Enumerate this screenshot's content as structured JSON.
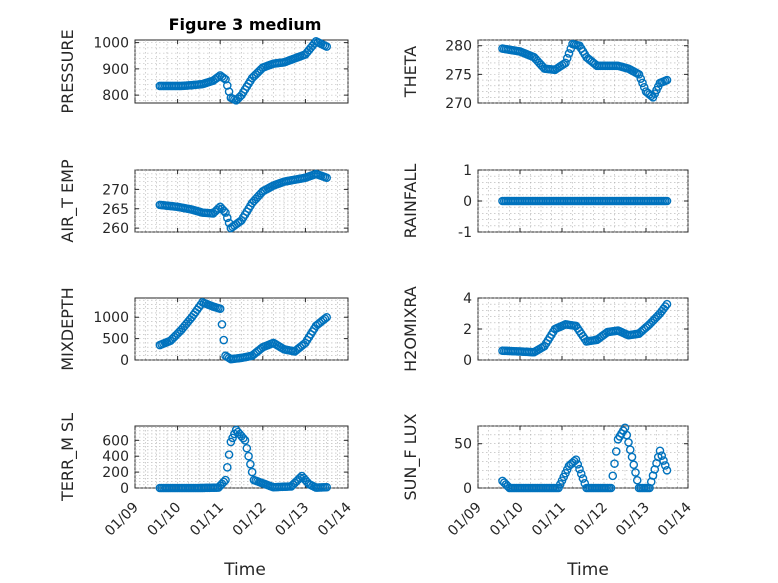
{
  "figure": {
    "title": "Figure 3 medium",
    "marker_color": "#0072BD"
  },
  "chart_data": [
    {
      "type": "scatter",
      "ylabel": "PRESSURE",
      "ylim": [
        770,
        1010
      ],
      "yticks": [
        800,
        900,
        1000
      ],
      "ytick_labels": [
        "800",
        "900",
        "1000"
      ],
      "x": [
        "01/09 14:00",
        "01/09 20:00",
        "01/10 02:00",
        "01/10 08:00",
        "01/10 14:00",
        "01/10 20:00",
        "01/11 00:00",
        "01/11 03:00",
        "01/11 06:00",
        "01/11 09:00",
        "01/11 12:00",
        "01/11 18:00",
        "01/12 00:00",
        "01/12 06:00",
        "01/12 12:00",
        "01/12 18:00",
        "01/13 00:00",
        "01/13 06:00",
        "01/13 12:00"
      ],
      "y": [
        835,
        835,
        835,
        838,
        842,
        855,
        875,
        860,
        790,
        780,
        800,
        865,
        905,
        920,
        925,
        940,
        955,
        1005,
        985
      ]
    },
    {
      "type": "scatter",
      "ylabel": "THETA",
      "ylim": [
        270,
        281
      ],
      "yticks": [
        270,
        275,
        280
      ],
      "ytick_labels": [
        "270",
        "275",
        "280"
      ],
      "x": [
        "01/09 14:00",
        "01/10 00:00",
        "01/10 08:00",
        "01/10 14:00",
        "01/10 20:00",
        "01/11 02:00",
        "01/11 06:00",
        "01/11 10:00",
        "01/11 14:00",
        "01/11 20:00",
        "01/12 02:00",
        "01/12 08:00",
        "01/12 14:00",
        "01/12 20:00",
        "01/13 00:00",
        "01/13 04:00",
        "01/13 08:00",
        "01/13 12:00"
      ],
      "y": [
        279.5,
        279,
        278,
        276,
        275.8,
        277,
        280.3,
        280,
        278,
        276.5,
        276.5,
        276.5,
        276,
        275,
        272,
        271,
        273.5,
        274
      ]
    },
    {
      "type": "scatter",
      "ylabel": "AIR_T EMP",
      "ylim": [
        259,
        275
      ],
      "yticks": [
        260,
        265,
        270
      ],
      "ytick_labels": [
        "260",
        "265",
        "270"
      ],
      "x": [
        "01/09 14:00",
        "01/10 00:00",
        "01/10 08:00",
        "01/10 14:00",
        "01/10 20:00",
        "01/11 00:00",
        "01/11 03:00",
        "01/11 06:00",
        "01/11 12:00",
        "01/11 18:00",
        "01/12 00:00",
        "01/12 06:00",
        "01/12 12:00",
        "01/12 18:00",
        "01/13 00:00",
        "01/13 06:00",
        "01/13 12:00"
      ],
      "y": [
        266,
        265.5,
        264.8,
        264,
        263.8,
        265.5,
        264,
        260,
        262,
        266.5,
        269.5,
        271,
        272,
        272.5,
        273,
        274,
        273
      ]
    },
    {
      "type": "scatter",
      "ylabel": "RAINFALL",
      "ylim": [
        -1,
        1
      ],
      "yticks": [
        -1,
        0,
        1
      ],
      "ytick_labels": [
        "-1",
        "0",
        "1"
      ],
      "x": [
        "01/09 14:00",
        "01/13 12:00"
      ],
      "y": [
        0,
        0
      ]
    },
    {
      "type": "scatter",
      "ylabel": "MIXDEPTH",
      "ylim": [
        0,
        1450
      ],
      "yticks": [
        0,
        500,
        1000
      ],
      "ytick_labels": [
        "0",
        "500",
        "1000"
      ],
      "x": [
        "01/09 14:00",
        "01/09 20:00",
        "01/10 02:00",
        "01/10 08:00",
        "01/10 14:00",
        "01/10 20:00",
        "01/11 00:00",
        "01/11 03:00",
        "01/11 06:00",
        "01/11 12:00",
        "01/11 18:00",
        "01/12 00:00",
        "01/12 06:00",
        "01/12 12:00",
        "01/12 18:00",
        "01/13 00:00",
        "01/13 06:00",
        "01/13 12:00"
      ],
      "y": [
        350,
        450,
        700,
        1000,
        1350,
        1250,
        1200,
        100,
        20,
        50,
        100,
        300,
        400,
        250,
        200,
        400,
        800,
        1000
      ]
    },
    {
      "type": "scatter",
      "ylabel": "H2OMIXRA",
      "ylim": [
        0,
        4
      ],
      "yticks": [
        0,
        2,
        4
      ],
      "ytick_labels": [
        "0",
        "2",
        "4"
      ],
      "x": [
        "01/09 14:00",
        "01/10 00:00",
        "01/10 08:00",
        "01/10 14:00",
        "01/10 20:00",
        "01/11 02:00",
        "01/11 08:00",
        "01/11 14:00",
        "01/11 20:00",
        "01/12 02:00",
        "01/12 08:00",
        "01/12 14:00",
        "01/12 20:00",
        "01/13 02:00",
        "01/13 08:00",
        "01/13 12:00"
      ],
      "y": [
        0.6,
        0.55,
        0.5,
        0.9,
        2,
        2.3,
        2.2,
        1.2,
        1.3,
        1.8,
        1.9,
        1.6,
        1.7,
        2.3,
        3,
        3.6
      ]
    },
    {
      "type": "scatter",
      "ylabel": "TERR_M SL",
      "ylim": [
        0,
        780
      ],
      "yticks": [
        0,
        200,
        400,
        600
      ],
      "ytick_labels": [
        "0",
        "200",
        "400",
        "600"
      ],
      "x": [
        "01/09 14:00",
        "01/10 12:00",
        "01/10 23:00",
        "01/11 03:00",
        "01/11 06:00",
        "01/11 09:00",
        "01/11 14:00",
        "01/11 19:00",
        "01/12 06:00",
        "01/12 16:00",
        "01/12 22:00",
        "01/13 02:00",
        "01/13 06:00",
        "01/13 12:00"
      ],
      "y": [
        0,
        0,
        5,
        100,
        580,
        730,
        600,
        100,
        10,
        20,
        150,
        50,
        5,
        10
      ]
    },
    {
      "type": "scatter",
      "ylabel": "SUN_F LUX",
      "ylim": [
        0,
        70
      ],
      "yticks": [
        0,
        50
      ],
      "ytick_labels": [
        "0",
        "50"
      ],
      "x": [
        "01/09 14:00",
        "01/09 18:00",
        "01/10 00:00",
        "01/10 12:00",
        "01/10 22:00",
        "01/11 04:00",
        "01/11 08:00",
        "01/11 14:00",
        "01/11 18:00",
        "01/12 04:00",
        "01/12 08:00",
        "01/12 12:00",
        "01/12 16:00",
        "01/12 20:00",
        "01/13 02:00",
        "01/13 08:00",
        "01/13 12:00"
      ],
      "y": [
        8,
        0,
        0,
        0,
        0,
        25,
        32,
        0,
        0,
        0,
        55,
        68,
        35,
        0,
        0,
        42,
        20
      ]
    }
  ],
  "xaxis": {
    "label": "Time",
    "range": [
      "01/09 00:00",
      "01/14 00:00"
    ],
    "ticks": [
      "01/09",
      "01/10",
      "01/11",
      "01/12",
      "01/13",
      "01/14"
    ]
  }
}
